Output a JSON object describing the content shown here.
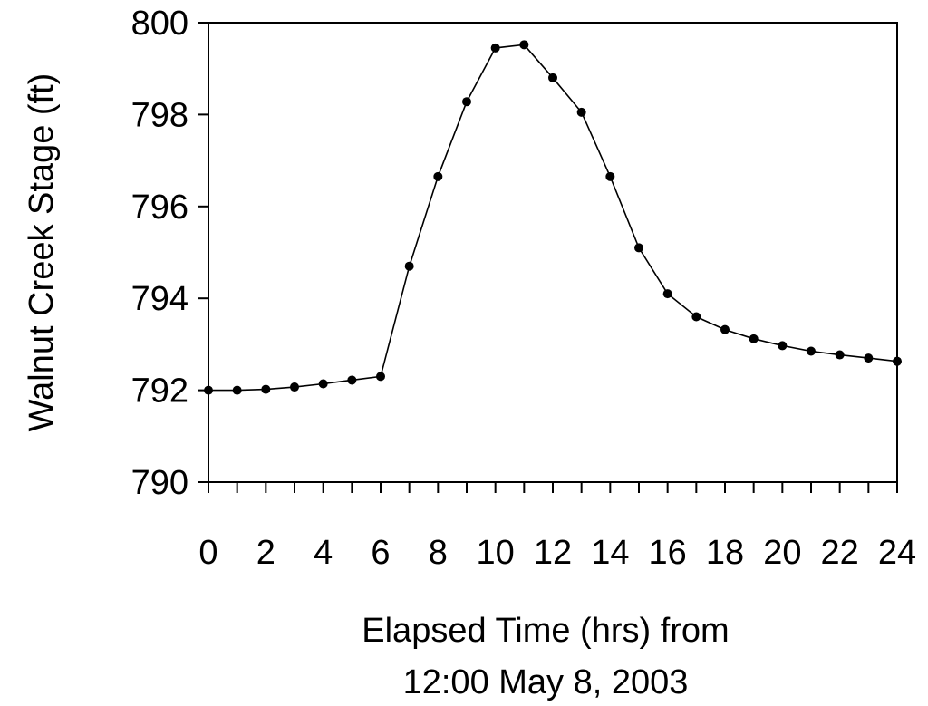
{
  "chart_data": {
    "type": "line",
    "title": "",
    "xlabel": [
      "Elapsed Time (hrs) from",
      "12:00 May 8, 2003"
    ],
    "ylabel": "Walnut Creek Stage (ft)",
    "xlim": [
      0,
      24
    ],
    "ylim": [
      790,
      800
    ],
    "xticks": [
      0,
      2,
      4,
      6,
      8,
      10,
      12,
      14,
      16,
      18,
      20,
      22,
      24
    ],
    "xminor_ticks": [
      1,
      3,
      5,
      7,
      9,
      11,
      13,
      15,
      17,
      19,
      21,
      23
    ],
    "yticks": [
      790,
      792,
      794,
      796,
      798,
      800
    ],
    "grid": false,
    "legend": "none",
    "series": [
      {
        "x": [
          0,
          1,
          2,
          3,
          4,
          5,
          6,
          7,
          8,
          9,
          10,
          11,
          12,
          13,
          14,
          15,
          16,
          17,
          18,
          19,
          20,
          21,
          22,
          23,
          24
        ],
        "y": [
          792.0,
          792.0,
          792.02,
          792.07,
          792.14,
          792.22,
          792.3,
          794.7,
          796.65,
          798.28,
          799.45,
          799.52,
          798.8,
          798.05,
          796.65,
          795.1,
          794.1,
          793.6,
          793.32,
          793.12,
          792.97,
          792.85,
          792.77,
          792.7,
          792.63
        ]
      }
    ]
  }
}
